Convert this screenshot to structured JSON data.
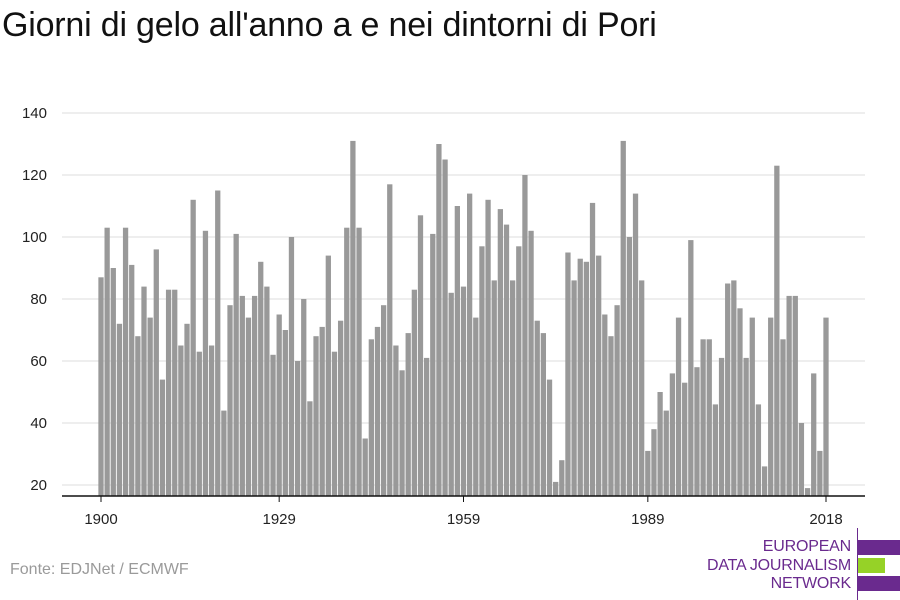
{
  "title": "Giorni di gelo all'anno a e nei dintorni di Pori",
  "source": "Fonte: EDJNet / ECMWF",
  "logo": {
    "lines": [
      "EUROPEAN",
      "DATA JOURNALISM",
      "NETWORK"
    ],
    "colors": [
      "#6a2a8e",
      "#96d227",
      "#6a2a8e"
    ]
  },
  "chart_data": {
    "type": "bar",
    "title": "Giorni di gelo all'anno a e nei dintorni di Pori",
    "xlabel": "",
    "ylabel": "",
    "x_ticks": [
      1900,
      1929,
      1959,
      1989,
      2018
    ],
    "y_ticks": [
      20,
      40,
      60,
      80,
      100,
      120,
      140
    ],
    "ylim": [
      16,
      143
    ],
    "xlim": [
      1900,
      2018
    ],
    "grid": true,
    "bar_color": "#999999",
    "grid_color": "#dddddd",
    "axis_color": "#111111",
    "years": [
      1900,
      1901,
      1902,
      1903,
      1904,
      1905,
      1906,
      1907,
      1908,
      1909,
      1910,
      1911,
      1912,
      1913,
      1914,
      1915,
      1916,
      1917,
      1918,
      1919,
      1920,
      1921,
      1922,
      1923,
      1924,
      1925,
      1926,
      1927,
      1928,
      1929,
      1930,
      1931,
      1932,
      1933,
      1934,
      1935,
      1936,
      1937,
      1938,
      1939,
      1940,
      1941,
      1942,
      1943,
      1944,
      1945,
      1946,
      1947,
      1948,
      1949,
      1950,
      1951,
      1952,
      1953,
      1954,
      1955,
      1956,
      1957,
      1958,
      1959,
      1960,
      1961,
      1962,
      1963,
      1964,
      1965,
      1966,
      1967,
      1968,
      1969,
      1970,
      1971,
      1972,
      1973,
      1974,
      1975,
      1976,
      1977,
      1978,
      1979,
      1980,
      1981,
      1982,
      1983,
      1984,
      1985,
      1986,
      1987,
      1988,
      1989,
      1990,
      1991,
      1992,
      1993,
      1994,
      1995,
      1996,
      1997,
      1998,
      1999,
      2000,
      2001,
      2002,
      2003,
      2004,
      2005,
      2006,
      2007,
      2008,
      2009,
      2010,
      2011,
      2012,
      2013,
      2014,
      2015,
      2016,
      2017,
      2018
    ],
    "values": [
      87,
      103,
      90,
      72,
      103,
      91,
      68,
      84,
      74,
      96,
      54,
      83,
      83,
      65,
      72,
      112,
      63,
      102,
      65,
      115,
      44,
      78,
      101,
      81,
      74,
      81,
      92,
      84,
      62,
      75,
      70,
      100,
      60,
      80,
      47,
      68,
      71,
      94,
      63,
      73,
      103,
      131,
      103,
      35,
      67,
      71,
      78,
      117,
      65,
      57,
      69,
      83,
      107,
      61,
      101,
      130,
      125,
      82,
      110,
      84,
      114,
      74,
      97,
      112,
      86,
      109,
      104,
      86,
      97,
      120,
      102,
      73,
      69,
      54,
      21,
      28,
      95,
      86,
      93,
      92,
      111,
      94,
      75,
      68,
      78,
      131,
      100,
      114,
      86,
      31,
      38,
      50,
      44,
      56,
      74,
      53,
      99,
      58,
      67,
      67,
      46,
      61,
      85,
      86,
      77,
      61,
      74,
      46,
      26,
      74,
      123,
      67,
      81,
      81,
      40,
      19,
      56,
      31,
      74
    ]
  }
}
